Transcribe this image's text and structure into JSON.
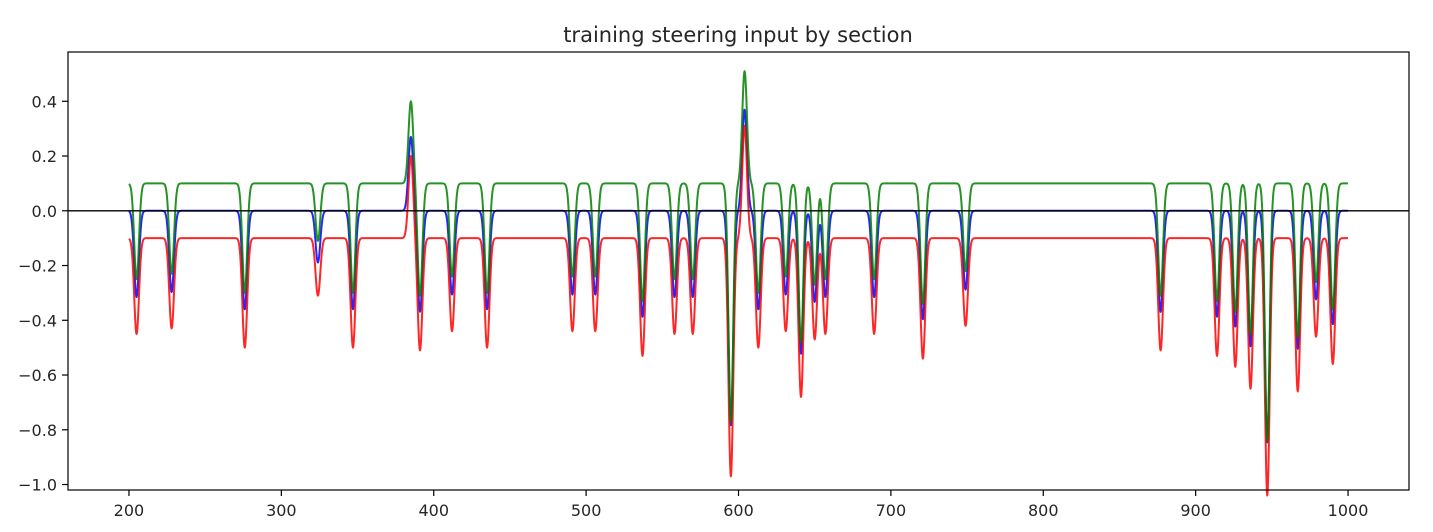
{
  "chart_data": {
    "type": "line",
    "title": "training steering input by section",
    "xlabel": "",
    "ylabel": "",
    "xlim": [
      160,
      1040
    ],
    "ylim": [
      -1.02,
      0.58
    ],
    "xticks": [
      200,
      300,
      400,
      500,
      600,
      700,
      800,
      900,
      1000
    ],
    "yticks": [
      0.4,
      0.2,
      0.0,
      -0.2,
      -0.4,
      -0.6,
      -0.8,
      -1.0
    ],
    "xtick_labels": [
      "200",
      "300",
      "400",
      "500",
      "600",
      "700",
      "800",
      "900",
      "1000"
    ],
    "ytick_labels": [
      "0.4",
      "0.2",
      "0.0",
      "−0.2",
      "−0.4",
      "−0.6",
      "−0.8",
      "−1.0"
    ],
    "reference_line": {
      "y": 0.0,
      "color": "#000000"
    },
    "grid": false,
    "legend": "none",
    "x_range": [
      200,
      1000
    ],
    "events": [
      {
        "x": 205,
        "value": -0.35
      },
      {
        "x": 228,
        "value": -0.33
      },
      {
        "x": 276,
        "value": -0.4
      },
      {
        "x": 324,
        "value": -0.21
      },
      {
        "x": 347,
        "value": -0.4
      },
      {
        "x": 385,
        "value": 0.3
      },
      {
        "x": 391,
        "value": -0.41
      },
      {
        "x": 412,
        "value": -0.34
      },
      {
        "x": 435,
        "value": -0.4
      },
      {
        "x": 491,
        "value": -0.34
      },
      {
        "x": 506,
        "value": -0.34
      },
      {
        "x": 537,
        "value": -0.43
      },
      {
        "x": 558,
        "value": -0.35
      },
      {
        "x": 570,
        "value": -0.35
      },
      {
        "x": 595,
        "value": -0.87
      },
      {
        "x": 604,
        "value": 0.41
      },
      {
        "x": 613,
        "value": -0.4
      },
      {
        "x": 631,
        "value": -0.34
      },
      {
        "x": 641,
        "value": -0.58
      },
      {
        "x": 650,
        "value": -0.37
      },
      {
        "x": 657,
        "value": -0.35
      },
      {
        "x": 689,
        "value": -0.35
      },
      {
        "x": 721,
        "value": -0.44
      },
      {
        "x": 749,
        "value": -0.32
      },
      {
        "x": 877,
        "value": -0.41
      },
      {
        "x": 914,
        "value": -0.43
      },
      {
        "x": 926,
        "value": -0.47
      },
      {
        "x": 936,
        "value": -0.55
      },
      {
        "x": 947,
        "value": -0.94
      },
      {
        "x": 967,
        "value": -0.56
      },
      {
        "x": 979,
        "value": -0.36
      },
      {
        "x": 990,
        "value": -0.46
      }
    ],
    "series": [
      {
        "color": "#0000ff",
        "offset": 0.0,
        "scale": 0.9
      },
      {
        "color": "#ff0000",
        "offset": -0.1,
        "scale": 1.0
      },
      {
        "color": "#008000",
        "offset": 0.1,
        "scale": 1.0
      }
    ]
  }
}
